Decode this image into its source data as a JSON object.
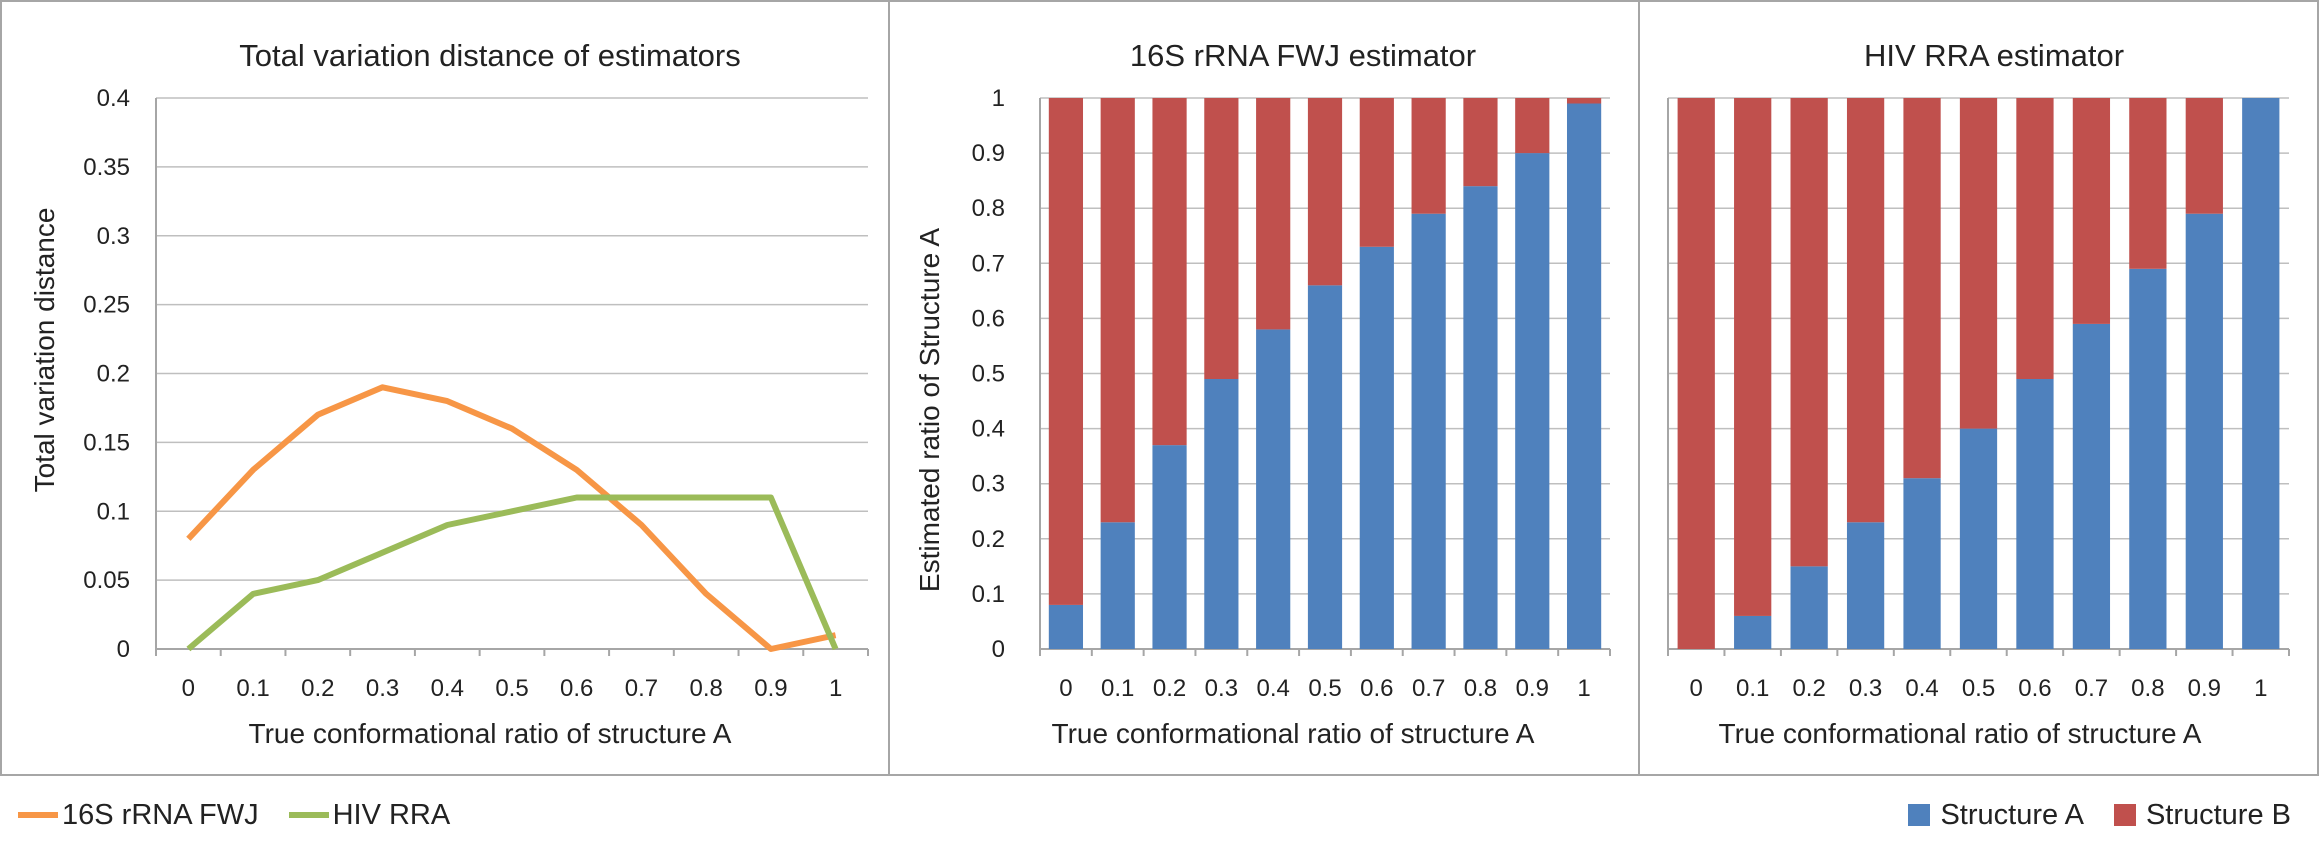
{
  "colors": {
    "orange": "#F79646",
    "green": "#9BBB59",
    "blue": "#4F81BD",
    "red": "#C0504D",
    "grid": "#BFBFBF",
    "axis": "#A6A6A6"
  },
  "legends": {
    "left": [
      {
        "label": "16S rRNA FWJ",
        "color": "#F79646"
      },
      {
        "label": "HIV RRA",
        "color": "#9BBB59"
      }
    ],
    "right": [
      {
        "label": "Structure A",
        "color": "#4F81BD"
      },
      {
        "label": "Structure B",
        "color": "#C0504D"
      }
    ]
  },
  "chart_data": [
    {
      "type": "line",
      "title": "Total variation distance of estimators",
      "xlabel": "True conformational ratio of structure A",
      "ylabel": "Total variation distance",
      "categories": [
        "0",
        "0.1",
        "0.2",
        "0.3",
        "0.4",
        "0.5",
        "0.6",
        "0.7",
        "0.8",
        "0.9",
        "1"
      ],
      "ylim": [
        0,
        0.4
      ],
      "yticks": [
        "0",
        "0.05",
        "0.1",
        "0.15",
        "0.2",
        "0.25",
        "0.3",
        "0.35",
        "0.4"
      ],
      "grid": true,
      "series": [
        {
          "name": "16S rRNA FWJ",
          "color": "#F79646",
          "values": [
            0.08,
            0.13,
            0.17,
            0.19,
            0.18,
            0.16,
            0.13,
            0.09,
            0.04,
            0.0,
            0.01
          ]
        },
        {
          "name": "HIV RRA",
          "color": "#9BBB59",
          "values": [
            0.0,
            0.04,
            0.05,
            0.07,
            0.09,
            0.1,
            0.11,
            0.11,
            0.11,
            0.11,
            0.0
          ]
        }
      ]
    },
    {
      "type": "bar",
      "stacked": true,
      "title": "16S rRNA FWJ estimator",
      "xlabel": "True conformational ratio of structure A",
      "ylabel": "Estimated ratio of Structure A",
      "categories": [
        "0",
        "0.1",
        "0.2",
        "0.3",
        "0.4",
        "0.5",
        "0.6",
        "0.7",
        "0.8",
        "0.9",
        "1"
      ],
      "ylim": [
        0,
        1
      ],
      "yticks": [
        "0",
        "0.1",
        "0.2",
        "0.3",
        "0.4",
        "0.5",
        "0.6",
        "0.7",
        "0.8",
        "0.9",
        "1"
      ],
      "grid": true,
      "series": [
        {
          "name": "Structure A",
          "color": "#4F81BD",
          "values": [
            0.08,
            0.23,
            0.37,
            0.49,
            0.58,
            0.66,
            0.73,
            0.79,
            0.84,
            0.9,
            0.99
          ]
        },
        {
          "name": "Structure B",
          "color": "#C0504D",
          "values": [
            0.92,
            0.77,
            0.63,
            0.51,
            0.42,
            0.34,
            0.27,
            0.21,
            0.16,
            0.1,
            0.01
          ]
        }
      ]
    },
    {
      "type": "bar",
      "stacked": true,
      "title": "HIV RRA estimator",
      "xlabel": "True conformational ratio of structure A",
      "ylabel": "",
      "categories": [
        "0",
        "0.1",
        "0.2",
        "0.3",
        "0.4",
        "0.5",
        "0.6",
        "0.7",
        "0.8",
        "0.9",
        "1"
      ],
      "ylim": [
        0,
        1
      ],
      "yticks": [],
      "grid": true,
      "series": [
        {
          "name": "Structure A",
          "color": "#4F81BD",
          "values": [
            0.0,
            0.06,
            0.15,
            0.23,
            0.31,
            0.4,
            0.49,
            0.59,
            0.69,
            0.79,
            1.0
          ]
        },
        {
          "name": "Structure B",
          "color": "#C0504D",
          "values": [
            1.0,
            0.94,
            0.85,
            0.77,
            0.69,
            0.6,
            0.51,
            0.41,
            0.31,
            0.21,
            0.0
          ]
        }
      ]
    }
  ]
}
